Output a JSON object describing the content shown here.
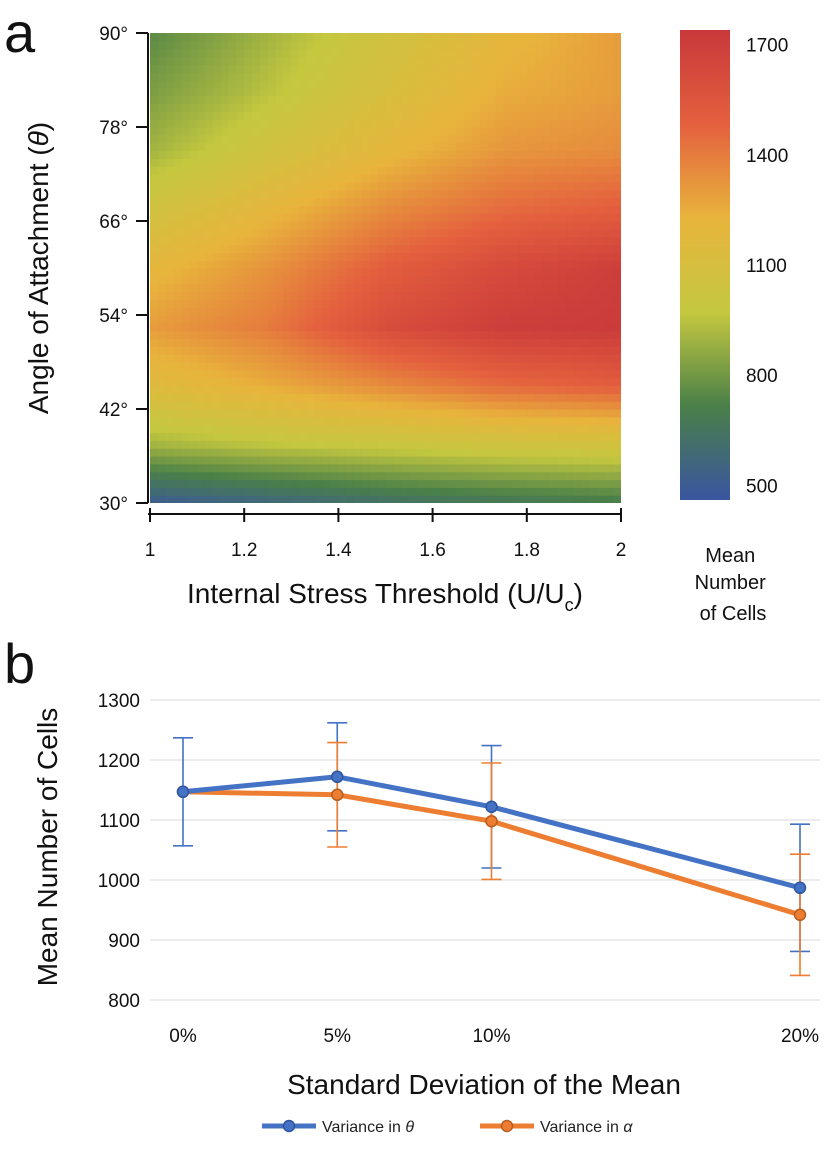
{
  "panel_a": {
    "letter": "a",
    "chart_data": {
      "type": "heatmap",
      "xlabel": "Internal Stress Threshold (U/U",
      "xlabel_sub": "c",
      "xlabel_close": ")",
      "ylabel": "Angle of Attachment (",
      "ylabel_sym": "θ",
      "ylabel_close": ")",
      "x_range": [
        1,
        2
      ],
      "y_range": [
        30,
        90
      ],
      "x_ticks": [
        "1",
        "1.2",
        "1.4",
        "1.6",
        "1.8",
        "2"
      ],
      "y_ticks": [
        "30°",
        "42°",
        "54°",
        "66°",
        "78°",
        "90°"
      ],
      "x_grid": [
        1.0,
        1.25,
        1.5,
        1.75,
        2.0
      ],
      "y_grid": [
        30,
        37.5,
        45,
        52.5,
        60,
        67.5,
        75,
        82.5,
        90
      ],
      "z": [
        [
          500,
          560,
          620,
          660,
          690
        ],
        [
          900,
          960,
          1000,
          1040,
          1060
        ],
        [
          1150,
          1250,
          1350,
          1450,
          1500
        ],
        [
          1300,
          1400,
          1600,
          1700,
          1720
        ],
        [
          1200,
          1330,
          1500,
          1620,
          1700
        ],
        [
          1050,
          1200,
          1350,
          1450,
          1500
        ],
        [
          900,
          1050,
          1200,
          1320,
          1350
        ],
        [
          820,
          950,
          1100,
          1250,
          1300
        ],
        [
          750,
          900,
          1050,
          1200,
          1300
        ]
      ],
      "colorbar": {
        "label_lines": [
          "Mean",
          "Number",
          "of Cells"
        ],
        "ticks": [
          "500",
          "800",
          "1100",
          "1400",
          "1700"
        ],
        "range": [
          460,
          1740
        ],
        "colors": [
          "#3a55a0",
          "#4a8048",
          "#c5c83f",
          "#e8b43c",
          "#e4603e",
          "#c8383a"
        ]
      }
    }
  },
  "panel_b": {
    "letter": "b",
    "chart_data": {
      "type": "line",
      "categories": [
        "0%",
        "5%",
        "10%",
        "20%"
      ],
      "x": [
        0,
        5,
        10,
        20
      ],
      "ylabel": "Mean Number of Cells",
      "xlabel": "Standard Deviation of the Mean",
      "ylim": [
        800,
        1300
      ],
      "y_ticks": [
        "800",
        "900",
        "1000",
        "1100",
        "1200",
        "1300"
      ],
      "grid": true,
      "series": [
        {
          "name_prefix": "Variance in ",
          "name_sym": "θ",
          "color": "#4472c4",
          "values": [
            1147,
            1172,
            1122,
            987
          ],
          "err": [
            90,
            90,
            102,
            106
          ]
        },
        {
          "name_prefix": "Variance in ",
          "name_sym": "α",
          "color": "#ed7d31",
          "values": [
            1147,
            1142,
            1098,
            942
          ],
          "err": [
            0,
            87,
            97,
            101
          ]
        }
      ],
      "legend_position": "bottom-center"
    }
  }
}
